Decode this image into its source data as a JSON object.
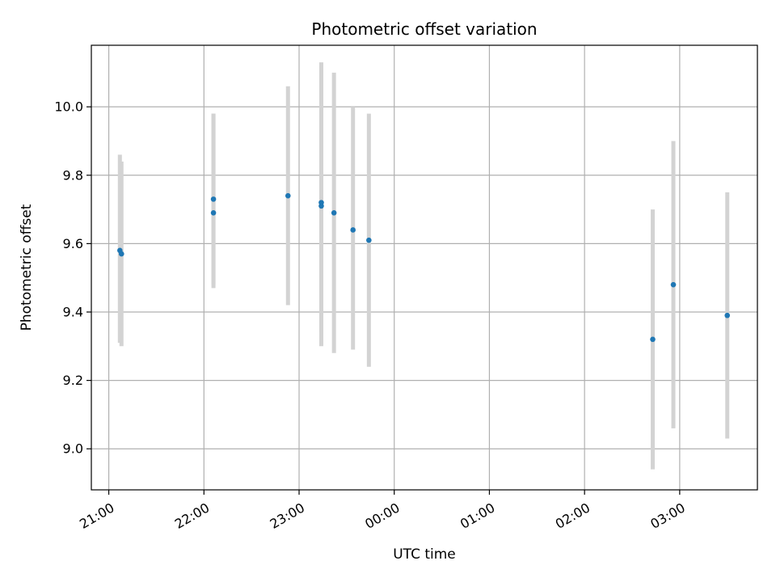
{
  "chart_data": {
    "type": "scatter",
    "title": "Photometric offset variation",
    "xlabel": "UTC time",
    "ylabel": "Photometric offset",
    "x_axis_kind": "time",
    "x_ticks": [
      "21:00",
      "22:00",
      "23:00",
      "00:00",
      "01:00",
      "02:00",
      "03:00"
    ],
    "xlim": [
      "20:49",
      "03:49"
    ],
    "y_ticks": [
      "9.0",
      "9.2",
      "9.4",
      "9.6",
      "9.8",
      "10.0"
    ],
    "ylim": [
      8.88,
      10.18
    ],
    "grid": true,
    "colors": {
      "point": "#1f77b4",
      "errorbar": "#d3d3d3",
      "grid": "#b0b0b0"
    },
    "points": [
      {
        "x": "21:07",
        "y": 9.58,
        "yerr_low": 9.31,
        "yerr_high": 9.86
      },
      {
        "x": "21:08",
        "y": 9.57,
        "yerr_low": 9.3,
        "yerr_high": 9.84
      },
      {
        "x": "22:06",
        "y": 9.69,
        "yerr_low": 9.47,
        "yerr_high": 9.98
      },
      {
        "x": "22:06",
        "y": 9.73,
        "yerr_low": 9.48,
        "yerr_high": 9.98
      },
      {
        "x": "22:53",
        "y": 9.74,
        "yerr_low": 9.42,
        "yerr_high": 10.06
      },
      {
        "x": "23:14",
        "y": 9.71,
        "yerr_low": 9.3,
        "yerr_high": 10.13
      },
      {
        "x": "23:14",
        "y": 9.72,
        "yerr_low": 9.34,
        "yerr_high": 10.12
      },
      {
        "x": "23:22",
        "y": 9.69,
        "yerr_low": 9.28,
        "yerr_high": 10.1
      },
      {
        "x": "23:34",
        "y": 9.64,
        "yerr_low": 9.29,
        "yerr_high": 10.0
      },
      {
        "x": "23:44",
        "y": 9.61,
        "yerr_low": 9.24,
        "yerr_high": 9.98
      },
      {
        "x": "02:43",
        "y": 9.32,
        "yerr_low": 8.94,
        "yerr_high": 9.7
      },
      {
        "x": "02:56",
        "y": 9.48,
        "yerr_low": 9.06,
        "yerr_high": 9.9
      },
      {
        "x": "03:30",
        "y": 9.39,
        "yerr_low": 9.03,
        "yerr_high": 9.75
      }
    ]
  }
}
